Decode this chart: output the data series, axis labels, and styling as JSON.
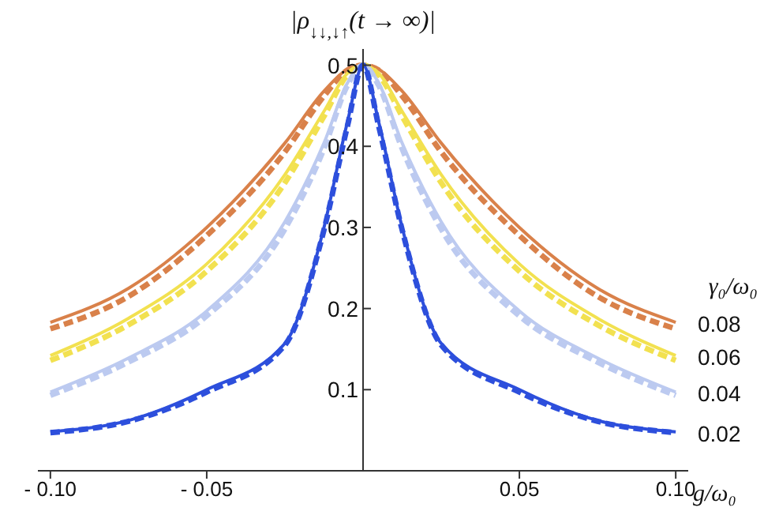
{
  "chart_data": {
    "type": "line",
    "ylabel": "|ρ$_{↓↓,↓↑}$(t → ∞)|",
    "xlabel": "g/ω₀",
    "legend_title": "γ₀/ω₀",
    "x": [
      -0.1,
      -0.075,
      -0.05,
      -0.025,
      -0.0125,
      -0.005,
      0,
      0.005,
      0.0125,
      0.025,
      0.05,
      0.075,
      0.1
    ],
    "series": [
      {
        "name": "0.08",
        "color": "#d9814a",
        "line_style": "solid",
        "values": [
          0.183,
          0.225,
          0.3,
          0.404,
          0.468,
          0.495,
          0.5,
          0.495,
          0.468,
          0.404,
          0.3,
          0.225,
          0.183
        ]
      },
      {
        "color": "#d9814a",
        "line_style": "dashed",
        "values": [
          0.175,
          0.215,
          0.29,
          0.393,
          0.462,
          0.494,
          0.5,
          0.494,
          0.462,
          0.393,
          0.29,
          0.215,
          0.175
        ]
      },
      {
        "name": "0.06",
        "color": "#f2e150",
        "line_style": "solid",
        "values": [
          0.142,
          0.188,
          0.255,
          0.365,
          0.443,
          0.49,
          0.5,
          0.49,
          0.443,
          0.365,
          0.255,
          0.188,
          0.142
        ]
      },
      {
        "color": "#f2e150",
        "line_style": "dashed",
        "values": [
          0.136,
          0.18,
          0.246,
          0.355,
          0.437,
          0.488,
          0.5,
          0.488,
          0.437,
          0.355,
          0.246,
          0.18,
          0.136
        ]
      },
      {
        "name": "0.04",
        "color": "#bccaf0",
        "line_style": "solid",
        "values": [
          0.097,
          0.139,
          0.197,
          0.307,
          0.404,
          0.478,
          0.5,
          0.478,
          0.404,
          0.307,
          0.197,
          0.139,
          0.097
        ]
      },
      {
        "color": "#bccaf0",
        "line_style": "dashed",
        "values": [
          0.093,
          0.134,
          0.191,
          0.298,
          0.397,
          0.475,
          0.5,
          0.475,
          0.397,
          0.298,
          0.191,
          0.134,
          0.093
        ]
      },
      {
        "name": "0.02",
        "color": "#2d4fdc",
        "line_style": "solid",
        "values": [
          0.048,
          0.062,
          0.1,
          0.157,
          0.3,
          0.43,
          0.5,
          0.43,
          0.3,
          0.157,
          0.1,
          0.062,
          0.048
        ]
      },
      {
        "color": "#2d4fdc",
        "line_style": "dashed",
        "values": [
          0.047,
          0.061,
          0.097,
          0.155,
          0.297,
          0.425,
          0.5,
          0.425,
          0.297,
          0.155,
          0.097,
          0.061,
          0.047
        ]
      }
    ],
    "xlim": [
      -0.104,
      0.104
    ],
    "ylim": [
      0,
      0.52
    ],
    "xticks": [
      {
        "value": -0.1,
        "label": "- 0.10"
      },
      {
        "value": -0.05,
        "label": "- 0.05"
      },
      {
        "value": 0.05,
        "label": "0.05"
      },
      {
        "value": 0.1,
        "label": "0.10"
      }
    ],
    "yticks": [
      0.1,
      0.2,
      0.3,
      0.4,
      0.5
    ],
    "grid": false,
    "legend": false,
    "marker": "none"
  }
}
